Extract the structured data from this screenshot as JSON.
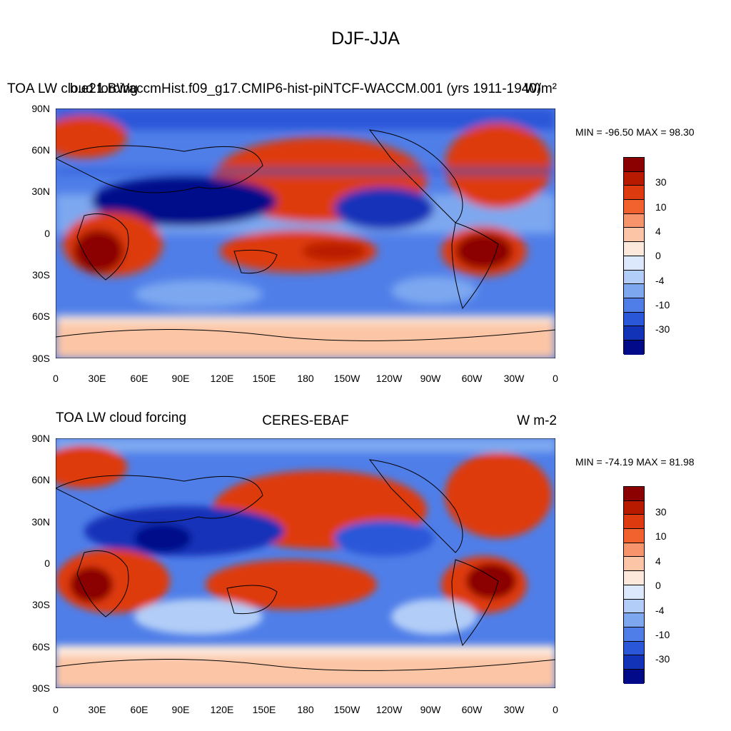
{
  "figure": {
    "title": "DJF-JJA",
    "lat_ticks": [
      "90N",
      "60N",
      "30N",
      "0",
      "30S",
      "60S",
      "90S"
    ],
    "lon_ticks": [
      "0",
      "30E",
      "60E",
      "90E",
      "120E",
      "150E",
      "180",
      "150W",
      "120W",
      "90W",
      "60W",
      "30W",
      "0"
    ],
    "colorbar_labels": [
      "30",
      "10",
      "4",
      "0",
      "-4",
      "-10",
      "-30"
    ],
    "colorbar_colors": [
      "#8b0000",
      "#b81a00",
      "#de3a10",
      "#f2622e",
      "#f7946b",
      "#fcc6a6",
      "#fde9dc",
      "#dce8fb",
      "#b2cdf7",
      "#7da8f0",
      "#4f7ee8",
      "#2a56d8",
      "#1232b8",
      "#020a8a"
    ]
  },
  "top_panel": {
    "left_title": "TOA LW cloud forcing",
    "center_title": "b.e21.BWaccmHist.f09_g17.CMIP6-hist-piNTCF-WACCM.001 (yrs 1911-1940)",
    "right_title": "W/m²",
    "minmax": "MIN = -96.50 MAX =  98.30"
  },
  "bottom_panel": {
    "left_title": "TOA LW cloud forcing",
    "center_title": "CERES-EBAF",
    "right_title": "W m-2",
    "minmax": "MIN = -74.19 MAX =  81.98"
  }
}
